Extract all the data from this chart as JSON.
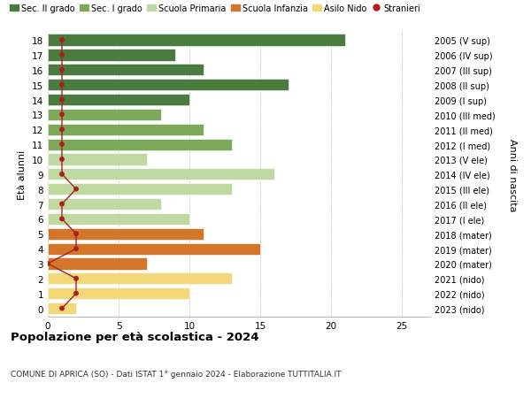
{
  "ages": [
    18,
    17,
    16,
    15,
    14,
    13,
    12,
    11,
    10,
    9,
    8,
    7,
    6,
    5,
    4,
    3,
    2,
    1,
    0
  ],
  "bar_values": [
    21,
    9,
    11,
    17,
    10,
    8,
    11,
    13,
    7,
    16,
    13,
    8,
    10,
    11,
    15,
    7,
    13,
    10,
    2
  ],
  "bar_colors": [
    "#4a7c3f",
    "#4a7c3f",
    "#4a7c3f",
    "#4a7c3f",
    "#4a7c3f",
    "#7daa5a",
    "#7daa5a",
    "#7daa5a",
    "#c0d9a0",
    "#c0d9a0",
    "#c0d9a0",
    "#c0d9a0",
    "#c0d9a0",
    "#d4762a",
    "#d4762a",
    "#d4762a",
    "#f2d878",
    "#f2d878",
    "#f2d878"
  ],
  "stranieri_values": [
    1,
    1,
    1,
    1,
    1,
    1,
    1,
    1,
    1,
    1,
    2,
    1,
    1,
    2,
    2,
    0,
    2,
    2,
    1
  ],
  "right_labels": [
    "2005 (V sup)",
    "2006 (IV sup)",
    "2007 (III sup)",
    "2008 (II sup)",
    "2009 (I sup)",
    "2010 (III med)",
    "2011 (II med)",
    "2012 (I med)",
    "2013 (V ele)",
    "2014 (IV ele)",
    "2015 (III ele)",
    "2016 (II ele)",
    "2017 (I ele)",
    "2018 (mater)",
    "2019 (mater)",
    "2020 (mater)",
    "2021 (nido)",
    "2022 (nido)",
    "2023 (nido)"
  ],
  "legend_labels": [
    "Sec. II grado",
    "Sec. I grado",
    "Scuola Primaria",
    "Scuola Infanzia",
    "Asilo Nido",
    "Stranieri"
  ],
  "legend_colors": [
    "#4a7c3f",
    "#7daa5a",
    "#c0d9a0",
    "#d4762a",
    "#f2d878",
    "#aa2020"
  ],
  "title": "Popolazione per età scolastica - 2024",
  "subtitle": "COMUNE DI APRICA (SO) - Dati ISTAT 1° gennaio 2024 - Elaborazione TUTTITALIA.IT",
  "ylabel_left": "Età alunni",
  "ylabel_right": "Anni di nascita",
  "xlim": [
    0,
    27
  ],
  "xticks": [
    0,
    5,
    10,
    15,
    20,
    25
  ],
  "stranieri_color": "#aa2020",
  "background_color": "#ffffff",
  "grid_color": "#cccccc"
}
